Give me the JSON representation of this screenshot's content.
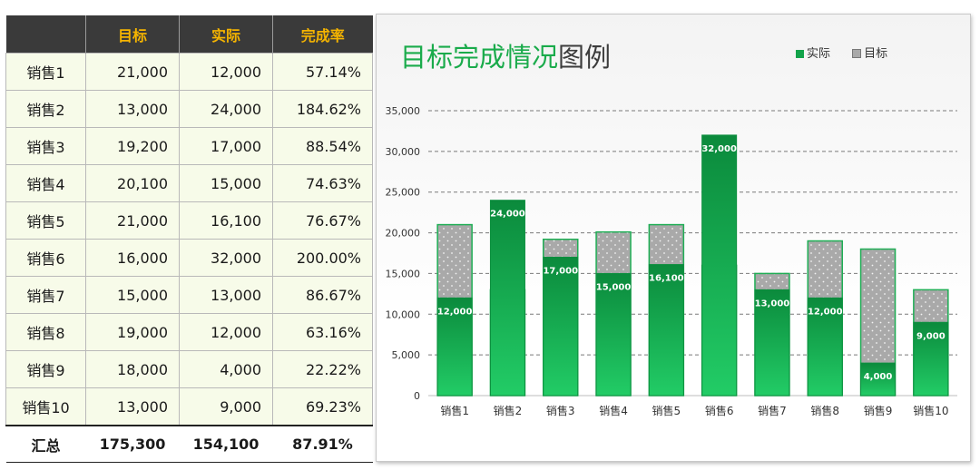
{
  "table": {
    "headers": [
      "",
      "目标",
      "实际",
      "完成率"
    ],
    "rows": [
      {
        "name": "销售1",
        "target": "21,000",
        "actual": "12,000",
        "rate": "57.14%"
      },
      {
        "name": "销售2",
        "target": "13,000",
        "actual": "24,000",
        "rate": "184.62%"
      },
      {
        "name": "销售3",
        "target": "19,200",
        "actual": "17,000",
        "rate": "88.54%"
      },
      {
        "name": "销售4",
        "target": "20,100",
        "actual": "15,000",
        "rate": "74.63%"
      },
      {
        "name": "销售5",
        "target": "21,000",
        "actual": "16,100",
        "rate": "76.67%"
      },
      {
        "name": "销售6",
        "target": "16,000",
        "actual": "32,000",
        "rate": "200.00%"
      },
      {
        "name": "销售7",
        "target": "15,000",
        "actual": "13,000",
        "rate": "86.67%"
      },
      {
        "name": "销售8",
        "target": "19,000",
        "actual": "12,000",
        "rate": "63.16%"
      },
      {
        "name": "销售9",
        "target": "18,000",
        "actual": "4,000",
        "rate": "22.22%"
      },
      {
        "name": "销售10",
        "target": "13,000",
        "actual": "9,000",
        "rate": "69.23%"
      }
    ],
    "total": {
      "name": "汇总",
      "target": "175,300",
      "actual": "154,100",
      "rate": "87.91%"
    }
  },
  "chart_data": {
    "type": "bar",
    "title_part1": "目标完成情况",
    "title_part2": "图例",
    "categories": [
      "销售1",
      "销售2",
      "销售3",
      "销售4",
      "销售5",
      "销售6",
      "销售7",
      "销售8",
      "销售9",
      "销售10"
    ],
    "series": [
      {
        "name": "实际",
        "values": [
          12000,
          24000,
          17000,
          15000,
          16100,
          32000,
          13000,
          12000,
          4000,
          9000
        ],
        "color": "#12a34a"
      },
      {
        "name": "目标",
        "values": [
          21000,
          13000,
          19200,
          20100,
          21000,
          16000,
          15000,
          19000,
          18000,
          13000
        ],
        "color": "#a9a9a9"
      }
    ],
    "data_labels": [
      "12,000",
      "24,000",
      "17,000",
      "15,000",
      "16,100",
      "32,000",
      "13,000",
      "12,000",
      "4,000",
      "9,000"
    ],
    "y_ticks": [
      "0",
      "5,000",
      "10,000",
      "15,000",
      "20,000",
      "25,000",
      "30,000",
      "35,000"
    ],
    "ylim": [
      0,
      35000
    ],
    "grid": true,
    "legend": "top-right",
    "overlap": true
  }
}
